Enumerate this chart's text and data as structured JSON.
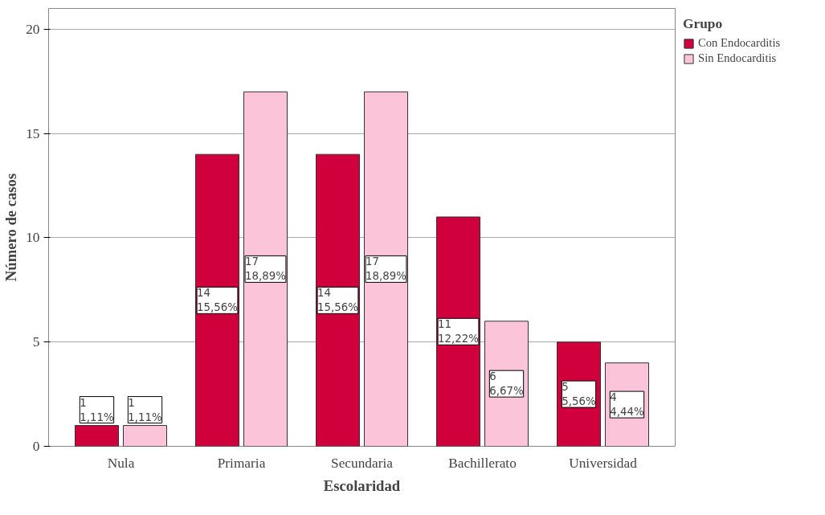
{
  "chart_data": {
    "type": "bar",
    "xlabel": "Escolaridad",
    "ylabel": "Número de casos",
    "legend_title": "Grupo",
    "categories": [
      "Nula",
      "Primaria",
      "Secundaria",
      "Bachillerato",
      "Universidad"
    ],
    "series": [
      {
        "name": "Con Endocarditis",
        "color": "#d0003c",
        "values": [
          1,
          14,
          14,
          11,
          5
        ],
        "value_labels": [
          "1\n1,11%",
          "14\n15,56%",
          "14\n15,56%",
          "11\n12,22%",
          "5\n5,56%"
        ]
      },
      {
        "name": "Sin Endocarditis",
        "color": "#fbc4d8",
        "values": [
          1,
          17,
          17,
          6,
          4
        ],
        "value_labels": [
          "1\n1,11%",
          "17\n18,89%",
          "17\n18,89%",
          "6\n6,67%",
          "4\n4,44%"
        ]
      }
    ],
    "ylim": [
      0,
      21
    ],
    "yticks": [
      0,
      5,
      10,
      15,
      20
    ],
    "grid": "y",
    "legend": "top right"
  }
}
